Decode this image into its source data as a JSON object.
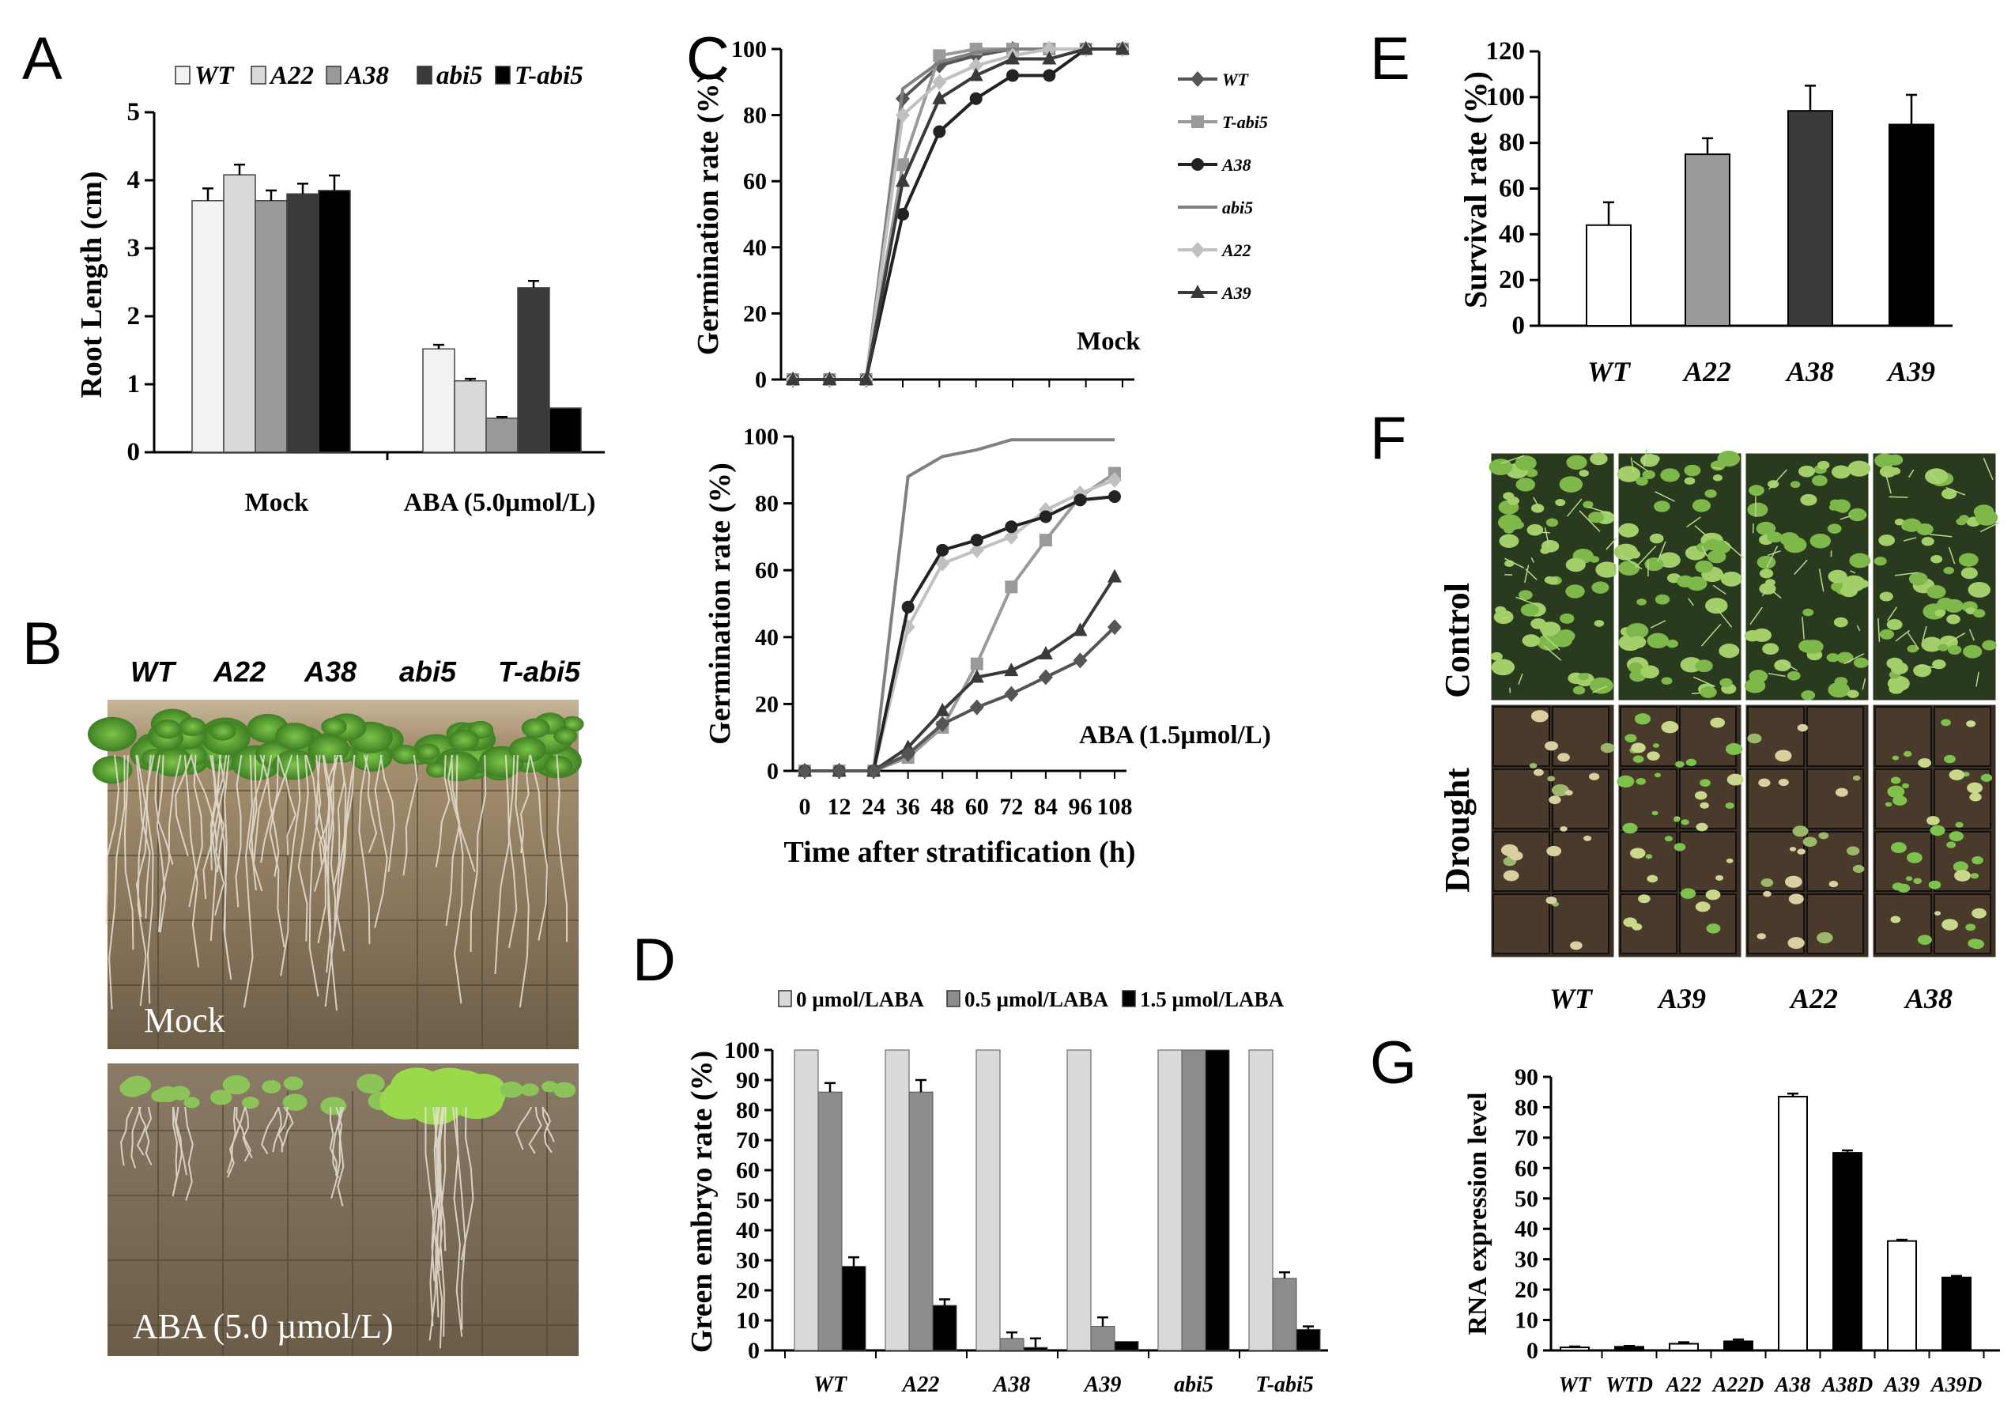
{
  "panels": {
    "A": "A",
    "B": "B",
    "C": "C",
    "D": "D",
    "E": "E",
    "F": "F",
    "G": "G"
  },
  "colors": {
    "wt": "#f2f2f2",
    "a22": "#d9d9d9",
    "a38": "#999999",
    "abi5": "#3a3a3a",
    "tabi5": "#000000",
    "c_wt": "#555555",
    "c_tabi5": "#9a9a9a",
    "c_a38": "#222222",
    "c_abi5": "#808080",
    "c_a22": "#c0c0c0",
    "c_a39": "#3a3a3a",
    "d0": "#d9d9d9",
    "d05": "#8c8c8c",
    "d15": "#000000"
  },
  "photo_B": {
    "header": [
      "WT",
      "A22",
      "A38",
      "abi5",
      "T-abi5"
    ],
    "top_label": "Mock",
    "bottom_label": "ABA (5.0 µmol/L)"
  },
  "photo_F": {
    "row_labels": [
      "Control",
      "Drought"
    ],
    "col_labels": [
      "WT",
      "A39",
      "A22",
      "A38"
    ]
  },
  "chart_data": [
    {
      "id": "A",
      "type": "bar",
      "title": "",
      "ylabel": "Root Length (cm)",
      "xlabel": "",
      "ylim": [
        0,
        5
      ],
      "yticks": [
        "0",
        "1",
        "2",
        "3",
        "4",
        "5"
      ],
      "categories": [
        "Mock",
        "ABA (5.0µmol/L)"
      ],
      "legend": [
        "WT",
        "A22",
        "A38",
        "abi5",
        "T-abi5"
      ],
      "series": [
        {
          "name": "WT",
          "values": [
            3.7,
            1.52
          ],
          "err": [
            0.18,
            0.06
          ]
        },
        {
          "name": "A22",
          "values": [
            4.08,
            1.05
          ],
          "err": [
            0.15,
            0.03
          ]
        },
        {
          "name": "A38",
          "values": [
            3.7,
            0.5
          ],
          "err": [
            0.15,
            0.02
          ]
        },
        {
          "name": "abi5",
          "values": [
            3.8,
            2.42
          ],
          "err": [
            0.15,
            0.1
          ]
        },
        {
          "name": "T-abi5",
          "values": [
            3.85,
            0.65
          ],
          "err": [
            0.22,
            0.0
          ]
        }
      ]
    },
    {
      "id": "C-mock",
      "type": "line",
      "ylabel": "Germination rate (%)",
      "annotation": "Mock",
      "ylim": [
        0,
        100
      ],
      "yticks": [
        "0",
        "20",
        "40",
        "60",
        "80",
        "100"
      ],
      "x": [
        0,
        12,
        24,
        36,
        48,
        60,
        72,
        84,
        96,
        108
      ],
      "legend": [
        "WT",
        "T-abi5",
        "A38",
        "abi5",
        "A22",
        "A39"
      ],
      "series": [
        {
          "name": "WT",
          "values": [
            0,
            0,
            0,
            85,
            95,
            98,
            100,
            100,
            100,
            100
          ]
        },
        {
          "name": "T-abi5",
          "values": [
            0,
            0,
            0,
            65,
            98,
            100,
            100,
            100,
            100,
            100
          ]
        },
        {
          "name": "A38",
          "values": [
            0,
            0,
            0,
            50,
            75,
            85,
            92,
            92,
            100,
            100
          ]
        },
        {
          "name": "abi5",
          "values": [
            0,
            0,
            0,
            88,
            96,
            99,
            100,
            100,
            100,
            100
          ]
        },
        {
          "name": "A22",
          "values": [
            0,
            0,
            0,
            80,
            90,
            95,
            98,
            100,
            100,
            100
          ]
        },
        {
          "name": "A39",
          "values": [
            0,
            0,
            0,
            60,
            85,
            92,
            97,
            97,
            100,
            100
          ]
        }
      ]
    },
    {
      "id": "C-aba",
      "type": "line",
      "ylabel": "Germination rate (%)",
      "annotation": "ABA (1.5µmol/L)",
      "xlabel": "Time after stratification (h)",
      "ylim": [
        0,
        100
      ],
      "yticks": [
        "0",
        "20",
        "40",
        "60",
        "80",
        "100"
      ],
      "xticks": [
        "0",
        "12",
        "24",
        "36",
        "48",
        "60",
        "72",
        "84",
        "96",
        "108"
      ],
      "x": [
        0,
        12,
        24,
        36,
        48,
        60,
        72,
        84,
        96,
        108
      ],
      "series": [
        {
          "name": "abi5",
          "values": [
            0,
            0,
            0,
            88,
            94,
            96,
            99,
            99,
            99,
            99
          ]
        },
        {
          "name": "T-abi5",
          "values": [
            0,
            0,
            0,
            4,
            13,
            32,
            55,
            69,
            82,
            89
          ]
        },
        {
          "name": "A22",
          "values": [
            0,
            0,
            0,
            43,
            62,
            66,
            70,
            78,
            83,
            87
          ]
        },
        {
          "name": "A38",
          "values": [
            0,
            0,
            0,
            49,
            66,
            69,
            73,
            76,
            81,
            82
          ]
        },
        {
          "name": "A39",
          "values": [
            0,
            0,
            0,
            7,
            18,
            28,
            30,
            35,
            42,
            58
          ]
        },
        {
          "name": "WT",
          "values": [
            0,
            0,
            0,
            5,
            14,
            19,
            23,
            28,
            33,
            43
          ]
        }
      ]
    },
    {
      "id": "D",
      "type": "bar",
      "ylabel": "Green embryo rate (%)",
      "ylim": [
        0,
        100
      ],
      "yticks": [
        "0",
        "10",
        "20",
        "30",
        "40",
        "50",
        "60",
        "70",
        "80",
        "90",
        "100"
      ],
      "categories": [
        "WT",
        "A22",
        "A38",
        "A39",
        "abi5",
        "T-abi5"
      ],
      "legend": [
        "0 µmol/LABA",
        "0.5 µmol/LABA",
        "1.5 µmol/LABA"
      ],
      "series": [
        {
          "name": "0 µmol/LABA",
          "values": [
            100,
            100,
            100,
            100,
            100,
            100
          ],
          "err": [
            0,
            0,
            0,
            0,
            0,
            0
          ]
        },
        {
          "name": "0.5 µmol/LABA",
          "values": [
            86,
            86,
            4,
            8,
            100,
            24
          ],
          "err": [
            3,
            4,
            2,
            3,
            0,
            2
          ]
        },
        {
          "name": "1.5 µmol/LABA",
          "values": [
            28,
            15,
            1,
            3,
            100,
            7
          ],
          "err": [
            3,
            2,
            3,
            0,
            0,
            1
          ]
        }
      ]
    },
    {
      "id": "E",
      "type": "bar",
      "ylabel": "Survival rate (%)",
      "ylim": [
        0,
        120
      ],
      "yticks": [
        "0",
        "20",
        "40",
        "60",
        "80",
        "100",
        "120"
      ],
      "categories": [
        "WT",
        "A22",
        "A38",
        "A39"
      ],
      "values": [
        44,
        75,
        94,
        88
      ],
      "err": [
        10,
        7,
        11,
        13
      ],
      "colors": [
        "#ffffff",
        "#999999",
        "#3a3a3a",
        "#000000"
      ]
    },
    {
      "id": "G",
      "type": "bar",
      "ylabel": "RNA expression level",
      "ylim": [
        0,
        90
      ],
      "yticks": [
        "0",
        "10",
        "20",
        "30",
        "40",
        "50",
        "60",
        "70",
        "80",
        "90"
      ],
      "categories": [
        "WT",
        "WTD",
        "A22",
        "A22D",
        "A38",
        "A38D",
        "A39",
        "A39D"
      ],
      "values": [
        1,
        1.2,
        2.2,
        3,
        83.5,
        65,
        36,
        24
      ],
      "err": [
        0.3,
        0.3,
        0.5,
        0.6,
        1,
        0.8,
        0.4,
        0.5
      ],
      "colors": [
        "#ffffff",
        "#000000",
        "#ffffff",
        "#000000",
        "#ffffff",
        "#000000",
        "#ffffff",
        "#000000"
      ]
    }
  ]
}
